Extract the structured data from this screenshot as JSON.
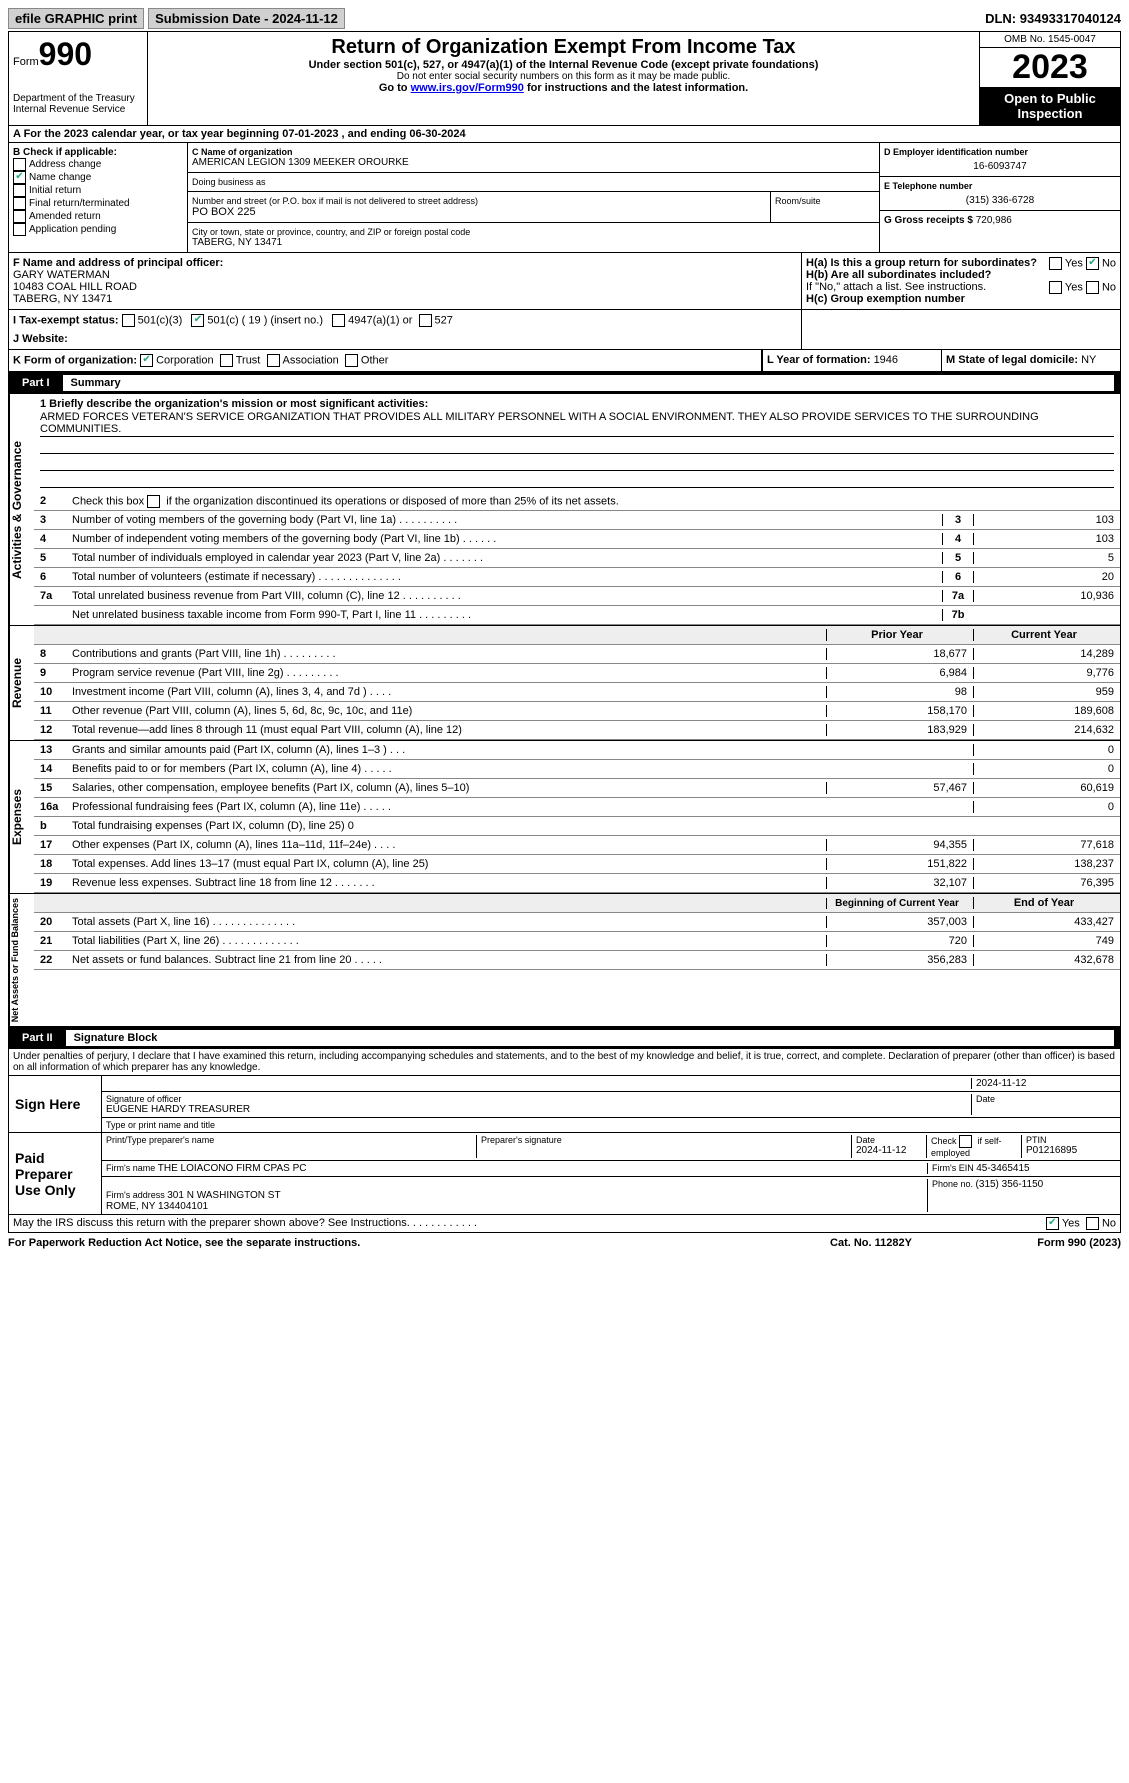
{
  "topbar": {
    "efile": "efile GRAPHIC print",
    "sub_label": "Submission Date - ",
    "sub_date": "2024-11-12",
    "dln_label": "DLN: ",
    "dln": "93493317040124"
  },
  "header": {
    "form_label": "Form",
    "form_no": "990",
    "dept": "Department of the Treasury\nInternal Revenue Service",
    "title": "Return of Organization Exempt From Income Tax",
    "sub1": "Under section 501(c), 527, or 4947(a)(1) of the Internal Revenue Code (except private foundations)",
    "sub2": "Do not enter social security numbers on this form as it may be made public.",
    "sub3_pre": "Go to ",
    "sub3_link": "www.irs.gov/Form990",
    "sub3_post": " for instructions and the latest information.",
    "omb": "OMB No. 1545-0047",
    "year": "2023",
    "open_pub": "Open to Public Inspection"
  },
  "row_a": {
    "pre": "A For the 2023 calendar year, or tax year beginning ",
    "begin": "07-01-2023",
    "mid": " , and ending ",
    "end": "06-30-2024"
  },
  "col_b": {
    "hdr": "B Check if applicable:",
    "items": [
      {
        "label": "Address change",
        "checked": false
      },
      {
        "label": "Name change",
        "checked": true
      },
      {
        "label": "Initial return",
        "checked": false
      },
      {
        "label": "Final return/terminated",
        "checked": false
      },
      {
        "label": "Amended return",
        "checked": false
      },
      {
        "label": "Application pending",
        "checked": false
      }
    ]
  },
  "col_c": {
    "name_label": "C Name of organization",
    "name": "AMERICAN LEGION 1309 MEEKER OROURKE",
    "dba_label": "Doing business as",
    "dba": "",
    "street_label": "Number and street (or P.O. box if mail is not delivered to street address)",
    "street": "PO BOX 225",
    "room_label": "Room/suite",
    "room": "",
    "city_label": "City or town, state or province, country, and ZIP or foreign postal code",
    "city": "TABERG, NY  13471"
  },
  "col_d": {
    "ein_label": "D Employer identification number",
    "ein": "16-6093747",
    "phone_label": "E Telephone number",
    "phone": "(315) 336-6728",
    "gross_label": "G Gross receipts $ ",
    "gross": "720,986"
  },
  "sec_f": {
    "label": "F  Name and address of principal officer:",
    "name": "GARY WATERMAN",
    "street": "10483 COAL HILL ROAD",
    "city": "TABERG, NY  13471"
  },
  "sec_i": {
    "label": "I   Tax-exempt status:",
    "opts": {
      "501c3": "501(c)(3)",
      "501c": "501(c) ( ",
      "501c_no": "19",
      "501c_post": " ) (insert no.)",
      "4947": "4947(a)(1) or",
      "527": "527"
    },
    "checked_501c": true
  },
  "sec_j": {
    "label": "J   Website:",
    "val": ""
  },
  "sec_h": {
    "a_label": "H(a)  Is this a group return for subordinates?",
    "a_yes": "Yes",
    "a_no": "No",
    "a_val": "No",
    "b_label": "H(b)  Are all subordinates included?",
    "b_note": "If \"No,\" attach a list. See instructions.",
    "c_label": "H(c)  Group exemption number "
  },
  "sec_k": {
    "label": "K Form of organization:",
    "opts": [
      "Corporation",
      "Trust",
      "Association",
      "Other"
    ],
    "checked": "Corporation"
  },
  "sec_l": {
    "label": "L Year of formation: ",
    "val": "1946"
  },
  "sec_m": {
    "label": "M State of legal domicile: ",
    "val": "NY"
  },
  "part1": {
    "hdr": "Part I",
    "title": "Summary",
    "mission_q": "1   Briefly describe the organization's mission or most significant activities:",
    "mission": "ARMED FORCES VETERAN'S SERVICE ORGANIZATION THAT PROVIDES ALL MILITARY PERSONNEL WITH A SOCIAL ENVIRONMENT. THEY ALSO PROVIDE SERVICES TO THE SURROUNDING COMMUNITIES.",
    "line2": "2   Check this box          if the organization discontinued its operations or disposed of more than 25% of its net assets."
  },
  "sections": {
    "gov": {
      "tab": "Activities & Governance",
      "lines": [
        {
          "no": "3",
          "desc": "Number of voting members of the governing body (Part VI, line 1a)   .    .    .    .    .    .    .    .    .    .",
          "box": "3",
          "val": "103"
        },
        {
          "no": "4",
          "desc": "Number of independent voting members of the governing body (Part VI, line 1b)   .    .    .    .    .    .",
          "box": "4",
          "val": "103"
        },
        {
          "no": "5",
          "desc": "Total number of individuals employed in calendar year 2023 (Part V, line 2a)   .    .    .    .    .    .    .",
          "box": "5",
          "val": "5"
        },
        {
          "no": "6",
          "desc": "Total number of volunteers (estimate if necessary)   .    .    .    .    .    .    .    .    .    .    .    .    .    .",
          "box": "6",
          "val": "20"
        },
        {
          "no": "7a",
          "desc": "Total unrelated business revenue from Part VIII, column (C), line 12   .    .    .    .    .    .    .    .    .    .",
          "box": "7a",
          "val": "10,936"
        },
        {
          "no": "",
          "desc": "Net unrelated business taxable income from Form 990-T, Part I, line 11   .    .    .    .    .    .    .    .    .",
          "box": "7b",
          "val": ""
        }
      ]
    },
    "rev": {
      "tab": "Revenue",
      "hdr_prior": "Prior Year",
      "hdr_curr": "Current Year",
      "lines": [
        {
          "no": "8",
          "desc": "Contributions and grants (Part VIII, line 1h)   .    .    .    .    .    .    .    .    .",
          "prior": "18,677",
          "curr": "14,289"
        },
        {
          "no": "9",
          "desc": "Program service revenue (Part VIII, line 2g)   .    .    .    .    .    .    .    .    .",
          "prior": "6,984",
          "curr": "9,776"
        },
        {
          "no": "10",
          "desc": "Investment income (Part VIII, column (A), lines 3, 4, and 7d )   .    .    .    .",
          "prior": "98",
          "curr": "959"
        },
        {
          "no": "11",
          "desc": "Other revenue (Part VIII, column (A), lines 5, 6d, 8c, 9c, 10c, and 11e)",
          "prior": "158,170",
          "curr": "189,608"
        },
        {
          "no": "12",
          "desc": "Total revenue—add lines 8 through 11 (must equal Part VIII, column (A), line 12)",
          "prior": "183,929",
          "curr": "214,632"
        }
      ]
    },
    "exp": {
      "tab": "Expenses",
      "lines": [
        {
          "no": "13",
          "desc": "Grants and similar amounts paid (Part IX, column (A), lines 1–3 )   .    .    .",
          "prior": "",
          "curr": "0"
        },
        {
          "no": "14",
          "desc": "Benefits paid to or for members (Part IX, column (A), line 4)   .    .    .    .    .",
          "prior": "",
          "curr": "0"
        },
        {
          "no": "15",
          "desc": "Salaries, other compensation, employee benefits (Part IX, column (A), lines 5–10)",
          "prior": "57,467",
          "curr": "60,619"
        },
        {
          "no": "16a",
          "desc": "Professional fundraising fees (Part IX, column (A), line 11e)   .    .    .    .    .",
          "prior": "",
          "curr": "0"
        },
        {
          "no": "b",
          "desc": "Total fundraising expenses (Part IX, column (D), line 25) 0",
          "prior": "GREY",
          "curr": "GREY"
        },
        {
          "no": "17",
          "desc": "Other expenses (Part IX, column (A), lines 11a–11d, 11f–24e)   .    .    .    .",
          "prior": "94,355",
          "curr": "77,618"
        },
        {
          "no": "18",
          "desc": "Total expenses. Add lines 13–17 (must equal Part IX, column (A), line 25)",
          "prior": "151,822",
          "curr": "138,237"
        },
        {
          "no": "19",
          "desc": "Revenue less expenses. Subtract line 18 from line 12   .    .    .    .    .    .    .",
          "prior": "32,107",
          "curr": "76,395"
        }
      ]
    },
    "net": {
      "tab": "Net Assets or Fund Balances",
      "hdr_prior": "Beginning of Current Year",
      "hdr_curr": "End of Year",
      "lines": [
        {
          "no": "20",
          "desc": "Total assets (Part X, line 16)   .    .    .    .    .    .    .    .    .    .    .    .    .    .",
          "prior": "357,003",
          "curr": "433,427"
        },
        {
          "no": "21",
          "desc": "Total liabilities (Part X, line 26)   .    .    .    .    .    .    .    .    .    .    .    .    .",
          "prior": "720",
          "curr": "749"
        },
        {
          "no": "22",
          "desc": "Net assets or fund balances. Subtract line 21 from line 20   .    .    .    .    .",
          "prior": "356,283",
          "curr": "432,678"
        }
      ]
    }
  },
  "part2": {
    "hdr": "Part II",
    "title": "Signature Block",
    "decl": "Under penalties of perjury, I declare that I have examined this return, including accompanying schedules and statements, and to the best of my knowledge and belief, it is true, correct, and complete. Declaration of preparer (other than officer) is based on all information of which preparer has any knowledge."
  },
  "sign": {
    "here": "Sign Here",
    "sig_label": "Signature of officer",
    "officer": "EUGENE HARDY TREASURER",
    "title_label": "Type or print name and title",
    "date_label": "Date",
    "date": "2024-11-12"
  },
  "paid": {
    "hdr": "Paid Preparer Use Only",
    "name_label": "Print/Type preparer's name",
    "name": "",
    "sig_label": "Preparer's signature",
    "date_label": "Date",
    "date": "2024-11-12",
    "check_label": "Check         if self-employed",
    "ptin_label": "PTIN",
    "ptin": "P01216895",
    "firm_name_label": "Firm's name      ",
    "firm_name": "THE LOIACONO FIRM CPAS PC",
    "firm_ein_label": "Firm's EIN  ",
    "firm_ein": "45-3465415",
    "firm_addr_label": "Firm's address ",
    "firm_addr": "301 N WASHINGTON ST\nROME, NY  134404101",
    "phone_label": "Phone no. ",
    "phone": "(315) 356-1150"
  },
  "discuss": {
    "q": "May the IRS discuss this return with the preparer shown above? See Instructions.   .    .    .    .    .    .    .    .    .    .    .",
    "yes": "Yes",
    "no": "No",
    "val": "Yes"
  },
  "footer": {
    "left": "For Paperwork Reduction Act Notice, see the separate instructions.",
    "mid": "Cat. No. 11282Y",
    "right": "Form 990 (2023)"
  }
}
